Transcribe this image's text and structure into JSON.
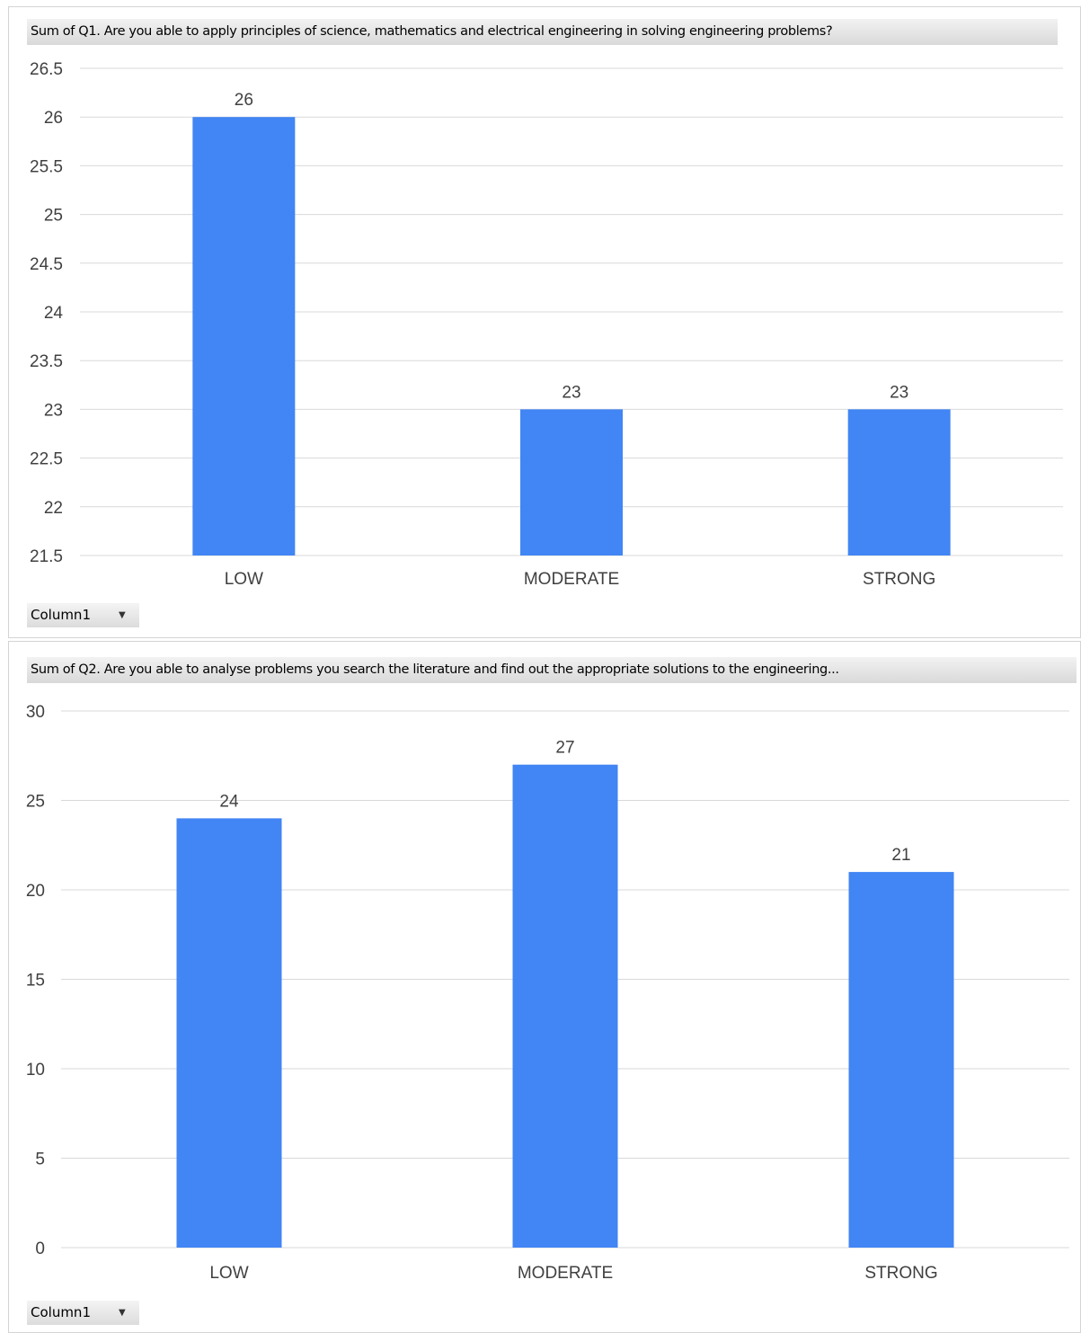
{
  "colors": {
    "bar": "#4285f4",
    "grid": "#d9d9d9",
    "text": "#404040"
  },
  "charts": [
    {
      "title": "Sum of Q1. Are you able to apply principles of science, mathematics and electrical engineering in solving engineering problems?",
      "filter_label": "Column1",
      "filter_icon": "chevron-down-icon"
    },
    {
      "title": "Sum of Q2. Are you able to analyse problems you search the literature and find out the appropriate solutions to the engineering...",
      "filter_label": "Column1",
      "filter_icon": "chevron-down-icon"
    }
  ],
  "chart_data": [
    {
      "type": "bar",
      "title": "Sum of Q1. Are you able to apply principles of science, mathematics and electrical engineering in solving engineering problems?",
      "categories": [
        "LOW",
        "MODERATE",
        "STRONG"
      ],
      "values": [
        26,
        23,
        23
      ],
      "ylim": [
        21.5,
        26.5
      ],
      "yticks": [
        "21.5",
        "22",
        "22.5",
        "23",
        "23.5",
        "24",
        "24.5",
        "25",
        "25.5",
        "26",
        "26.5"
      ],
      "grid": true,
      "legend": "none",
      "data_labels": true
    },
    {
      "type": "bar",
      "title": "Sum of Q2. Are you able to analyse problems you search the literature and find out the appropriate solutions to the engineering...",
      "categories": [
        "LOW",
        "MODERATE",
        "STRONG"
      ],
      "values": [
        24,
        27,
        21
      ],
      "ylim": [
        0,
        30
      ],
      "yticks": [
        "0",
        "5",
        "10",
        "15",
        "20",
        "25",
        "30"
      ],
      "grid": true,
      "legend": "none",
      "data_labels": true
    }
  ]
}
